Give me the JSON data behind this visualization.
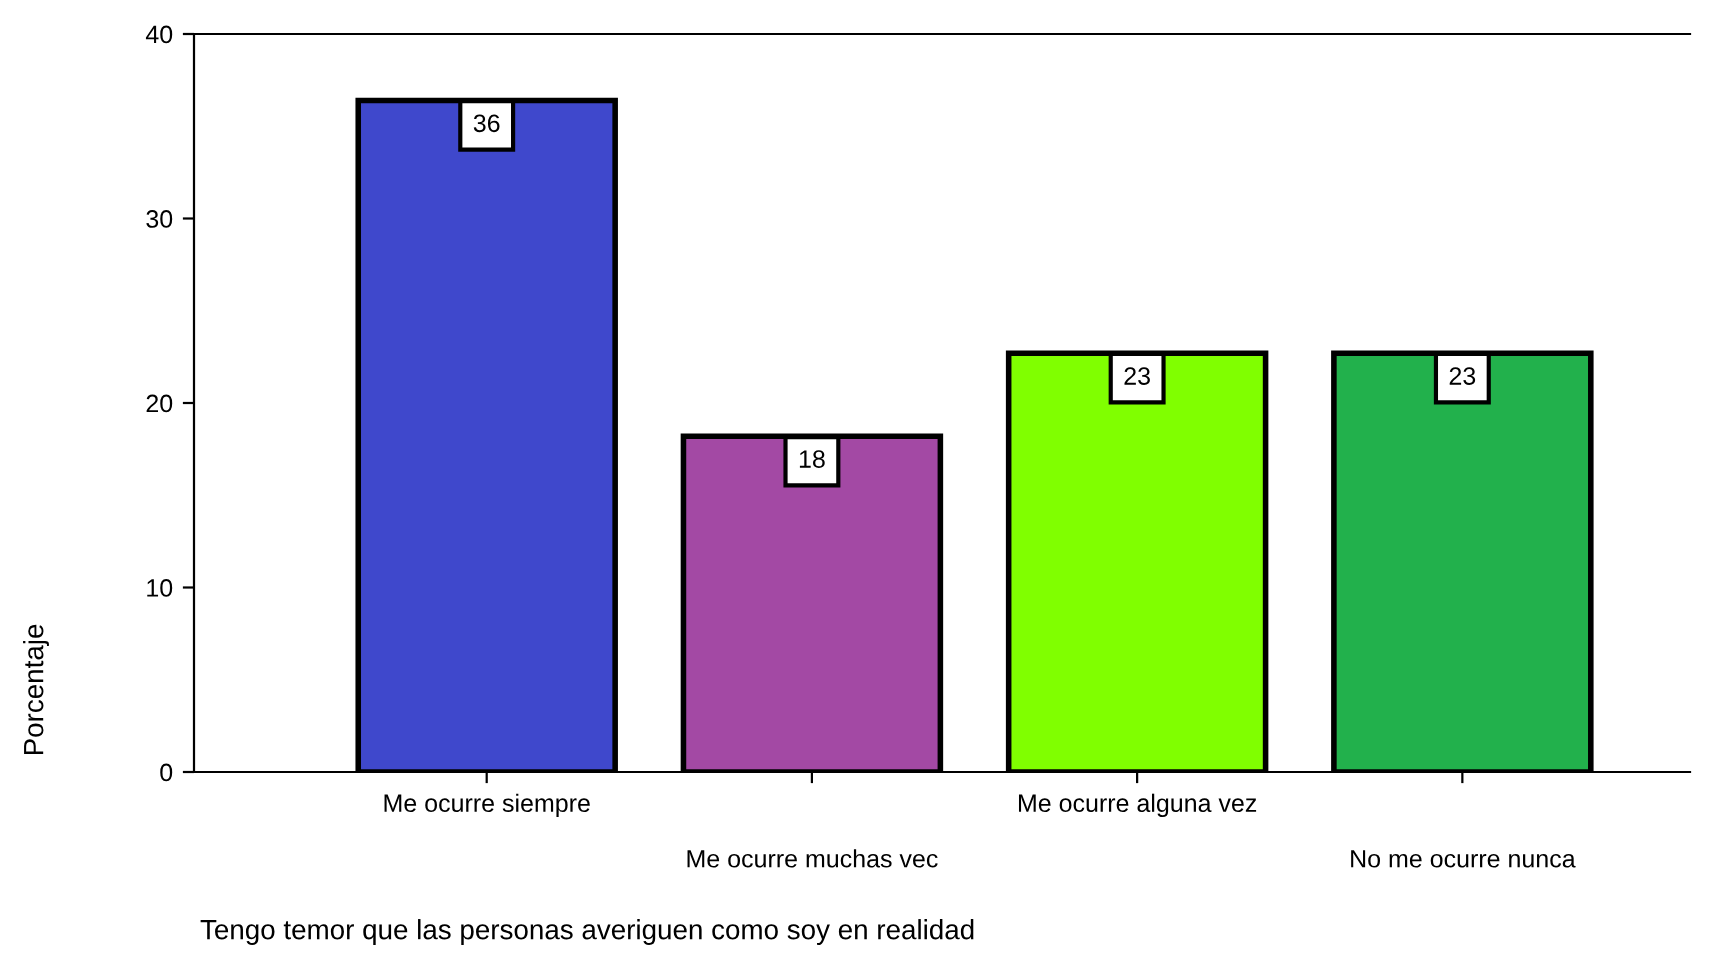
{
  "chart_data": {
    "type": "bar",
    "xlabel": "Tengo temor que las personas averiguen como soy en realidad",
    "ylabel": "Porcentaje",
    "categories": [
      "Me ocurre siempre",
      "Me ocurre muchas vec",
      "Me ocurre alguna vez",
      "No me ocurre nunca"
    ],
    "values": [
      36.4,
      18.2,
      22.7,
      22.7
    ],
    "colors": [
      "#3f48cc",
      "#a349a4",
      "#80ff00",
      "#22b14c"
    ],
    "value_labels": [
      "36",
      "18",
      "23",
      "23"
    ],
    "ylim": [
      0,
      40
    ],
    "yticks": [
      0,
      10,
      20,
      30,
      40
    ],
    "grid": false
  }
}
